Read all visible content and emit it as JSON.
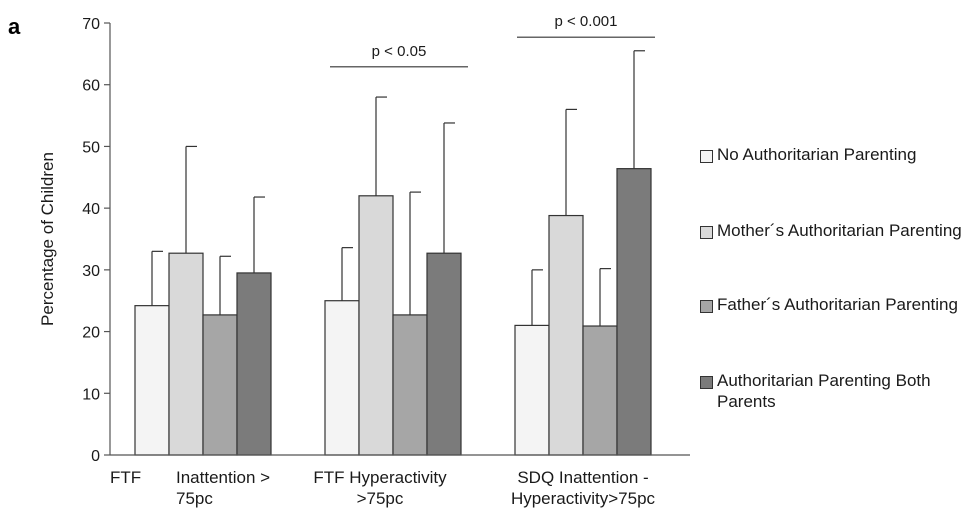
{
  "panel_label": "a",
  "chart_data": {
    "type": "bar",
    "title": "",
    "xlabel": "",
    "ylabel": "Percentage of Children",
    "ylim": [
      0,
      70
    ],
    "yticks": [
      0,
      10,
      20,
      30,
      40,
      50,
      60,
      70
    ],
    "grid": false,
    "legend_position": "right",
    "categories": [
      [
        "FTF",
        "Inattention >",
        "75pc"
      ],
      [
        "FTF Hyperactivity",
        ">75pc"
      ],
      [
        "SDQ Inattention -",
        "Hyperactivity>75pc"
      ]
    ],
    "series": [
      {
        "name": "No Authoritarian Parenting",
        "color": "#f4f4f4",
        "values": [
          24.2,
          25.0,
          21.0
        ],
        "error_upper": [
          33.0,
          33.6,
          30.0
        ]
      },
      {
        "name": "Mother´s Authoritarian Parenting",
        "color": "#d9d9d9",
        "values": [
          32.7,
          42.0,
          38.8
        ],
        "error_upper": [
          50.0,
          58.0,
          56.0
        ]
      },
      {
        "name": "Father´s Authoritarian Parenting",
        "color": "#a6a6a6",
        "values": [
          22.7,
          22.7,
          20.9
        ],
        "error_upper": [
          32.2,
          42.6,
          30.2
        ]
      },
      {
        "name": "Authoritarian Parenting Both Parents",
        "color": "#7b7b7b",
        "values": [
          29.5,
          32.7,
          46.4
        ],
        "error_upper": [
          41.8,
          53.8,
          65.5
        ]
      }
    ],
    "annotations": [
      {
        "text": "p < 0.05",
        "group": 1,
        "y": 62.9
      },
      {
        "text": "p < 0.001",
        "group": 2,
        "y": 67.7
      }
    ]
  }
}
